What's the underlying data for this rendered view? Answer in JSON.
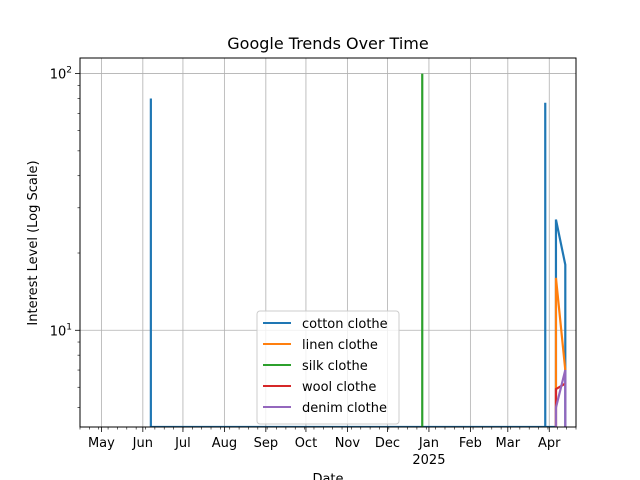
{
  "chart_data": {
    "type": "line",
    "title": "Google Trends Over Time",
    "xlabel": "Date",
    "ylabel": "Interest Level (Log Scale)",
    "y_scale": "log",
    "ylim": [
      4.2,
      115
    ],
    "xlim": [
      "2024-04-15",
      "2025-04-21"
    ],
    "grid": true,
    "legend_position": "lower-center",
    "x_ticks": [
      {
        "date": "2024-05-01",
        "label": "May"
      },
      {
        "date": "2024-06-01",
        "label": "Jun"
      },
      {
        "date": "2024-07-01",
        "label": "Jul"
      },
      {
        "date": "2024-08-01",
        "label": "Aug"
      },
      {
        "date": "2024-09-01",
        "label": "Sep"
      },
      {
        "date": "2024-10-01",
        "label": "Oct"
      },
      {
        "date": "2024-11-01",
        "label": "Nov"
      },
      {
        "date": "2024-12-01",
        "label": "Dec"
      },
      {
        "date": "2025-01-01",
        "label": "Jan",
        "sublabel": "2025"
      },
      {
        "date": "2025-02-01",
        "label": "Feb"
      },
      {
        "date": "2025-03-01",
        "label": "Mar"
      },
      {
        "date": "2025-04-01",
        "label": "Apr"
      }
    ],
    "y_ticks": [
      {
        "value": 10,
        "base": "10",
        "exp": "1"
      },
      {
        "value": 100,
        "base": "10",
        "exp": "2"
      }
    ],
    "series": [
      {
        "name": "cotton clothe",
        "color": "#1f77b4",
        "points": [
          {
            "x": "2024-06-07",
            "y": 80
          },
          {
            "x": "2024-06-07",
            "y": 4.2
          },
          {
            "x": "2025-03-29",
            "y": 4.2
          },
          {
            "x": "2025-03-29",
            "y": 77
          },
          {
            "x": "2025-03-29",
            "y": 4.2
          },
          {
            "x": "2025-04-06",
            "y": 4.2
          },
          {
            "x": "2025-04-06",
            "y": 27
          },
          {
            "x": "2025-04-13",
            "y": 18
          },
          {
            "x": "2025-04-13",
            "y": 4.2
          }
        ]
      },
      {
        "name": "linen clothe",
        "color": "#ff7f0e",
        "points": [
          {
            "x": "2025-04-06",
            "y": 4.2
          },
          {
            "x": "2025-04-06",
            "y": 16
          },
          {
            "x": "2025-04-13",
            "y": 7
          }
        ]
      },
      {
        "name": "silk clothe",
        "color": "#2ca02c",
        "points": [
          {
            "x": "2024-12-27",
            "y": 100
          },
          {
            "x": "2024-12-27",
            "y": 4.2
          }
        ]
      },
      {
        "name": "wool clothe",
        "color": "#d62728",
        "points": [
          {
            "x": "2025-04-06",
            "y": 4.2
          },
          {
            "x": "2025-04-06",
            "y": 5.9
          },
          {
            "x": "2025-04-13",
            "y": 6.2
          }
        ]
      },
      {
        "name": "denim clothe",
        "color": "#9467bd",
        "points": [
          {
            "x": "2025-04-06",
            "y": 4.2
          },
          {
            "x": "2025-04-06",
            "y": 5
          },
          {
            "x": "2025-04-13",
            "y": 7
          },
          {
            "x": "2025-04-13",
            "y": 4.2
          }
        ]
      }
    ]
  }
}
